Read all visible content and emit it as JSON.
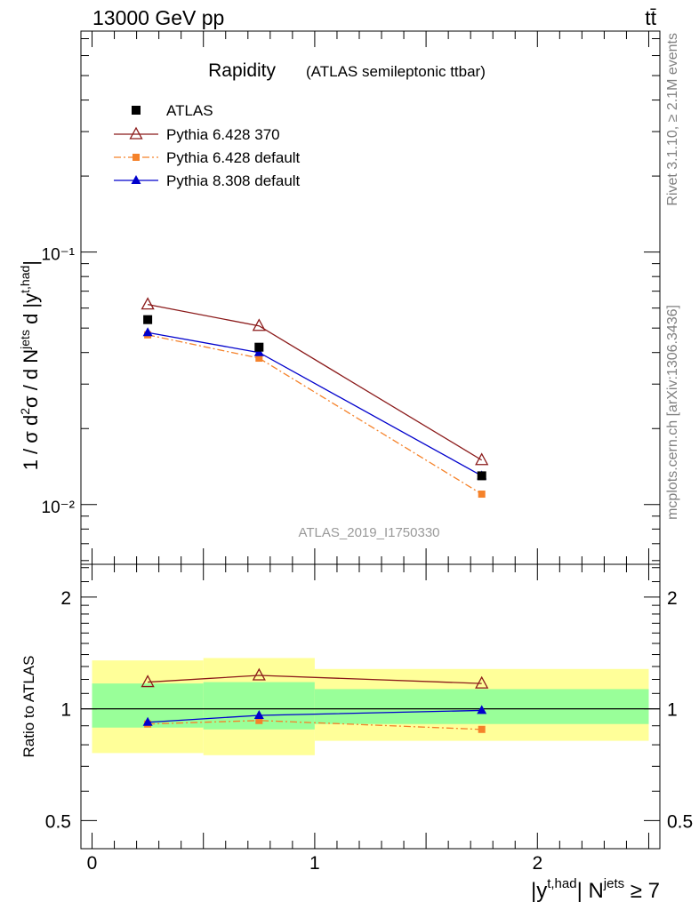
{
  "header": {
    "energy_label": "13000 GeV pp",
    "process_label": "tt̄"
  },
  "side_labels": {
    "rivet": "Rivet 3.1.10, ≥ 2.1M events",
    "mcplots": "mcplots.cern.ch [arXiv:1306.3436]"
  },
  "colors": {
    "data": "#000000",
    "pythia6_370": "#8b1a1a",
    "pythia6_default": "#f5822a",
    "pythia8_default": "#0000cc",
    "band_inner": "#99ff99",
    "band_outer": "#ffff99"
  },
  "chart_data": [
    {
      "type": "scatter",
      "panel": "main",
      "title": "Rapidity",
      "subtitle": "(ATLAS semileptonic ttbar)",
      "analysis_id": "ATLAS_2019_I1750330",
      "ylabel": "1 / σ d²σ / d N^jets d |y^t,had|",
      "yscale": "log",
      "ylim": [
        0.0058,
        0.75
      ],
      "xlim": [
        -0.05,
        2.55
      ],
      "ytick_labels": [
        "10⁻¹",
        "10⁻²"
      ],
      "legend_position": "top-left",
      "x": [
        0.25,
        0.75,
        1.75
      ],
      "series": [
        {
          "name": "ATLAS",
          "style": "data",
          "marker": "square",
          "values": [
            0.054,
            0.042,
            0.013
          ]
        },
        {
          "name": "Pythia 6.428 370",
          "style": "pythia6_370",
          "marker": "open-triangle",
          "values": [
            0.062,
            0.051,
            0.015
          ]
        },
        {
          "name": "Pythia 6.428 default",
          "style": "pythia6_default",
          "marker": "small-square",
          "values": [
            0.047,
            0.038,
            0.011
          ]
        },
        {
          "name": "Pythia 8.308 default",
          "style": "pythia8_default",
          "marker": "filled-triangle",
          "values": [
            0.048,
            0.04,
            0.013
          ]
        }
      ]
    },
    {
      "type": "line",
      "panel": "ratio",
      "ylabel": "Ratio to ATLAS",
      "xlabel": "|y^t,had| N^jets ≥ 7",
      "yscale": "log",
      "ylim": [
        0.42,
        2.45
      ],
      "xlim": [
        -0.05,
        2.55
      ],
      "xtick_labels": [
        "0",
        "1",
        "2"
      ],
      "ytick_labels": [
        "0.5",
        "1",
        "2"
      ],
      "reference_line": 1,
      "bins": [
        {
          "x_low": 0.0,
          "x_high": 0.5,
          "outer": [
            0.76,
            1.35
          ],
          "inner": [
            0.89,
            1.17
          ]
        },
        {
          "x_low": 0.5,
          "x_high": 1.0,
          "outer": [
            0.75,
            1.37
          ],
          "inner": [
            0.88,
            1.18
          ]
        },
        {
          "x_low": 1.0,
          "x_high": 2.5,
          "outer": [
            0.82,
            1.28
          ],
          "inner": [
            0.91,
            1.13
          ]
        }
      ],
      "x": [
        0.25,
        0.75,
        1.75
      ],
      "series": [
        {
          "name": "Pythia 6.428 370",
          "style": "pythia6_370",
          "marker": "open-triangle",
          "values": [
            1.18,
            1.23,
            1.17
          ]
        },
        {
          "name": "Pythia 6.428 default",
          "style": "pythia6_default",
          "marker": "small-square",
          "values": [
            0.91,
            0.93,
            0.88
          ]
        },
        {
          "name": "Pythia 8.308 default",
          "style": "pythia8_default",
          "marker": "filled-triangle",
          "values": [
            0.92,
            0.96,
            0.99
          ]
        }
      ]
    }
  ]
}
